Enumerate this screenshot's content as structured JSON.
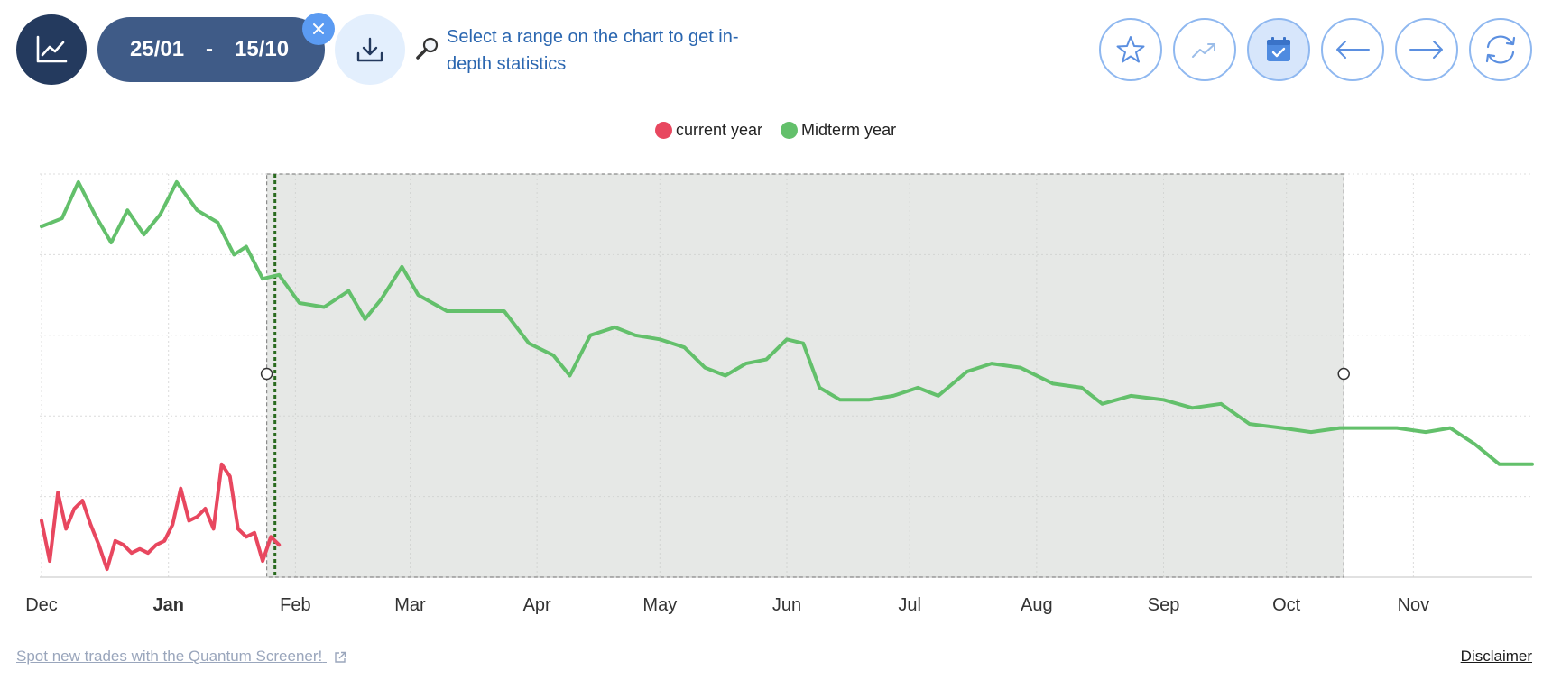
{
  "toolbar": {
    "chart_icon": "line-chart-icon",
    "date_from": "25/01",
    "date_separator": "-",
    "date_to": "15/10",
    "clear_icon": "close-icon",
    "download_icon": "download-icon",
    "hint_icon": "magnifier-icon",
    "hint_text": "Select a range on the chart to get in-depth statistics",
    "tools": [
      {
        "name": "star",
        "icon": "star-icon"
      },
      {
        "name": "trend",
        "icon": "trend-icon"
      },
      {
        "name": "calendar",
        "icon": "calendar-icon",
        "active": true
      },
      {
        "name": "back",
        "icon": "arrow-left-icon"
      },
      {
        "name": "forward",
        "icon": "arrow-right-icon"
      },
      {
        "name": "refresh",
        "icon": "refresh-icon"
      }
    ]
  },
  "legend": [
    {
      "label": "current year",
      "color": "#e8475f"
    },
    {
      "label": "Midterm year",
      "color": "#63c06b"
    }
  ],
  "chart_data": {
    "type": "line",
    "x_tick_labels": [
      "Dec",
      "Jan",
      "Feb",
      "Mar",
      "Apr",
      "May",
      "Jun",
      "Jul",
      "Aug",
      "Sep",
      "Oct",
      "Nov"
    ],
    "bold_tick": "Jan",
    "x_range": [
      "Dec 1",
      "Nov 30"
    ],
    "y_range": [
      0,
      100
    ],
    "grid": true,
    "selected_range": {
      "from": "25/01",
      "to": "15/10"
    },
    "current_marker": "Jan 27",
    "series": [
      {
        "name": "current year",
        "color": "#e8475f",
        "points": [
          [
            "Dec 1",
            14
          ],
          [
            "Dec 3",
            4
          ],
          [
            "Dec 5",
            21
          ],
          [
            "Dec 7",
            12
          ],
          [
            "Dec 9",
            17
          ],
          [
            "Dec 11",
            19
          ],
          [
            "Dec 13",
            13
          ],
          [
            "Dec 15",
            8
          ],
          [
            "Dec 17",
            2
          ],
          [
            "Dec 19",
            9
          ],
          [
            "Dec 21",
            8
          ],
          [
            "Dec 23",
            6
          ],
          [
            "Dec 25",
            7
          ],
          [
            "Dec 27",
            6
          ],
          [
            "Dec 29",
            8
          ],
          [
            "Dec 31",
            9
          ],
          [
            "Jan 2",
            13
          ],
          [
            "Jan 4",
            22
          ],
          [
            "Jan 6",
            14
          ],
          [
            "Jan 8",
            15
          ],
          [
            "Jan 10",
            17
          ],
          [
            "Jan 12",
            12
          ],
          [
            "Jan 14",
            28
          ],
          [
            "Jan 16",
            25
          ],
          [
            "Jan 18",
            12
          ],
          [
            "Jan 20",
            10
          ],
          [
            "Jan 22",
            11
          ],
          [
            "Jan 24",
            4
          ],
          [
            "Jan 26",
            10
          ],
          [
            "Jan 28",
            8
          ]
        ]
      },
      {
        "name": "Midterm year",
        "color": "#63c06b",
        "points": [
          [
            "Dec 1",
            87
          ],
          [
            "Dec 6",
            89
          ],
          [
            "Dec 10",
            98
          ],
          [
            "Dec 14",
            90
          ],
          [
            "Dec 18",
            83
          ],
          [
            "Dec 22",
            91
          ],
          [
            "Dec 26",
            85
          ],
          [
            "Dec 30",
            90
          ],
          [
            "Jan 3",
            98
          ],
          [
            "Jan 8",
            91
          ],
          [
            "Jan 13",
            88
          ],
          [
            "Jan 17",
            80
          ],
          [
            "Jan 20",
            82
          ],
          [
            "Jan 24",
            74
          ],
          [
            "Jan 28",
            75
          ],
          [
            "Feb 2",
            68
          ],
          [
            "Feb 8",
            67
          ],
          [
            "Feb 14",
            71
          ],
          [
            "Feb 18",
            64
          ],
          [
            "Feb 22",
            69
          ],
          [
            "Feb 27",
            77
          ],
          [
            "Mar 3",
            70
          ],
          [
            "Mar 10",
            66
          ],
          [
            "Mar 17",
            66
          ],
          [
            "Mar 24",
            66
          ],
          [
            "Mar 30",
            58
          ],
          [
            "Apr 5",
            55
          ],
          [
            "Apr 9",
            50
          ],
          [
            "Apr 14",
            60
          ],
          [
            "Apr 20",
            62
          ],
          [
            "Apr 25",
            60
          ],
          [
            "May 1",
            59
          ],
          [
            "May 7",
            57
          ],
          [
            "May 12",
            52
          ],
          [
            "May 17",
            50
          ],
          [
            "May 22",
            53
          ],
          [
            "May 27",
            54
          ],
          [
            "Jun 1",
            59
          ],
          [
            "Jun 5",
            58
          ],
          [
            "Jun 9",
            47
          ],
          [
            "Jun 14",
            44
          ],
          [
            "Jun 21",
            44
          ],
          [
            "Jun 27",
            45
          ],
          [
            "Jul 3",
            47
          ],
          [
            "Jul 8",
            45
          ],
          [
            "Jul 15",
            51
          ],
          [
            "Jul 21",
            53
          ],
          [
            "Jul 28",
            52
          ],
          [
            "Aug 5",
            48
          ],
          [
            "Aug 12",
            47
          ],
          [
            "Aug 17",
            43
          ],
          [
            "Aug 24",
            45
          ],
          [
            "Sep 1",
            44
          ],
          [
            "Sep 8",
            42
          ],
          [
            "Sep 15",
            43
          ],
          [
            "Sep 22",
            38
          ],
          [
            "Sep 30",
            37
          ],
          [
            "Oct 7",
            36
          ],
          [
            "Oct 14",
            37
          ],
          [
            "Oct 21",
            37
          ],
          [
            "Oct 28",
            37
          ],
          [
            "Nov 4",
            36
          ],
          [
            "Nov 10",
            37
          ],
          [
            "Nov 16",
            33
          ],
          [
            "Nov 22",
            28
          ],
          [
            "Nov 30",
            28
          ]
        ]
      }
    ]
  },
  "footer": {
    "screener_link": "Spot new trades with the Quantum Screener!",
    "external_icon": "external-link-icon",
    "disclaimer": "Disclaimer"
  }
}
